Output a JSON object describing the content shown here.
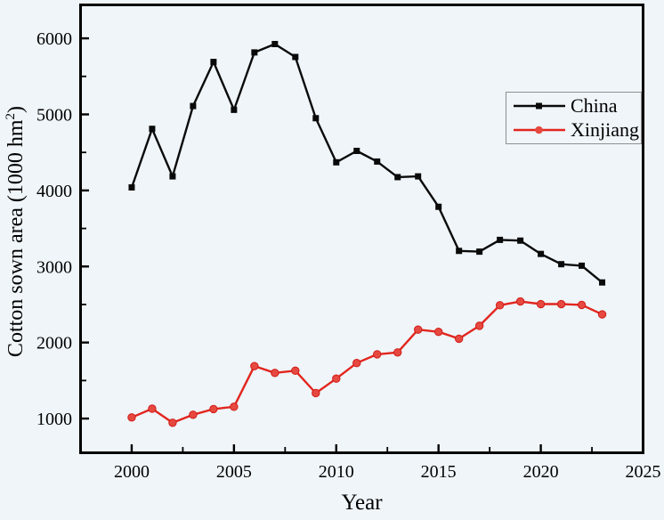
{
  "page": {
    "background": "#eff5f9",
    "axis_color": "#000000",
    "legend_border_color": "#8f8f8f"
  },
  "chart_data": {
    "type": "line",
    "title": "",
    "xlabel": "Year",
    "ylabel": "Cotton sown area (1000 hm²)",
    "ylabel_main": "Cotton sown area (1000 hm",
    "ylabel_sup": "2",
    "ylabel_close": ")",
    "x": [
      2000,
      2001,
      2002,
      2003,
      2004,
      2005,
      2006,
      2007,
      2008,
      2009,
      2010,
      2011,
      2012,
      2013,
      2014,
      2015,
      2016,
      2017,
      2018,
      2019,
      2020,
      2021,
      2022,
      2023
    ],
    "series": [
      {
        "name": "China",
        "color": "#0a0a0a",
        "marker": "square",
        "marker_fill": "#0a0a0a",
        "values": [
          4040,
          4810,
          4185,
          5110,
          5690,
          5060,
          5815,
          5925,
          5755,
          4950,
          4370,
          4520,
          4380,
          4175,
          4185,
          3785,
          3205,
          3195,
          3350,
          3340,
          3165,
          3030,
          3010,
          2790
        ]
      },
      {
        "name": "Xinjiang",
        "color": "#e2251e",
        "marker": "circle",
        "marker_fill": "#e64940",
        "marker_stroke": "#d21c16",
        "values": [
          1015,
          1130,
          945,
          1050,
          1125,
          1155,
          1690,
          1600,
          1630,
          1335,
          1525,
          1730,
          1845,
          1870,
          2170,
          2140,
          2050,
          2220,
          2490,
          2540,
          2505,
          2505,
          2495,
          2370
        ]
      }
    ],
    "xlim": [
      1997.5,
      2025
    ],
    "ylim": [
      550,
      6440
    ],
    "x_ticks": [
      2000,
      2005,
      2010,
      2015,
      2020,
      2025
    ],
    "x_minor_ticks": [
      2002.5,
      2007.5,
      2012.5,
      2017.5,
      2022.5
    ],
    "y_ticks": [
      1000,
      2000,
      3000,
      4000,
      5000,
      6000
    ],
    "y_minor_ticks": [
      1500,
      2500,
      3500,
      4500,
      5500
    ],
    "grid": false,
    "legend_position": "upper-right",
    "legend": [
      "China",
      "Xinjiang"
    ]
  }
}
